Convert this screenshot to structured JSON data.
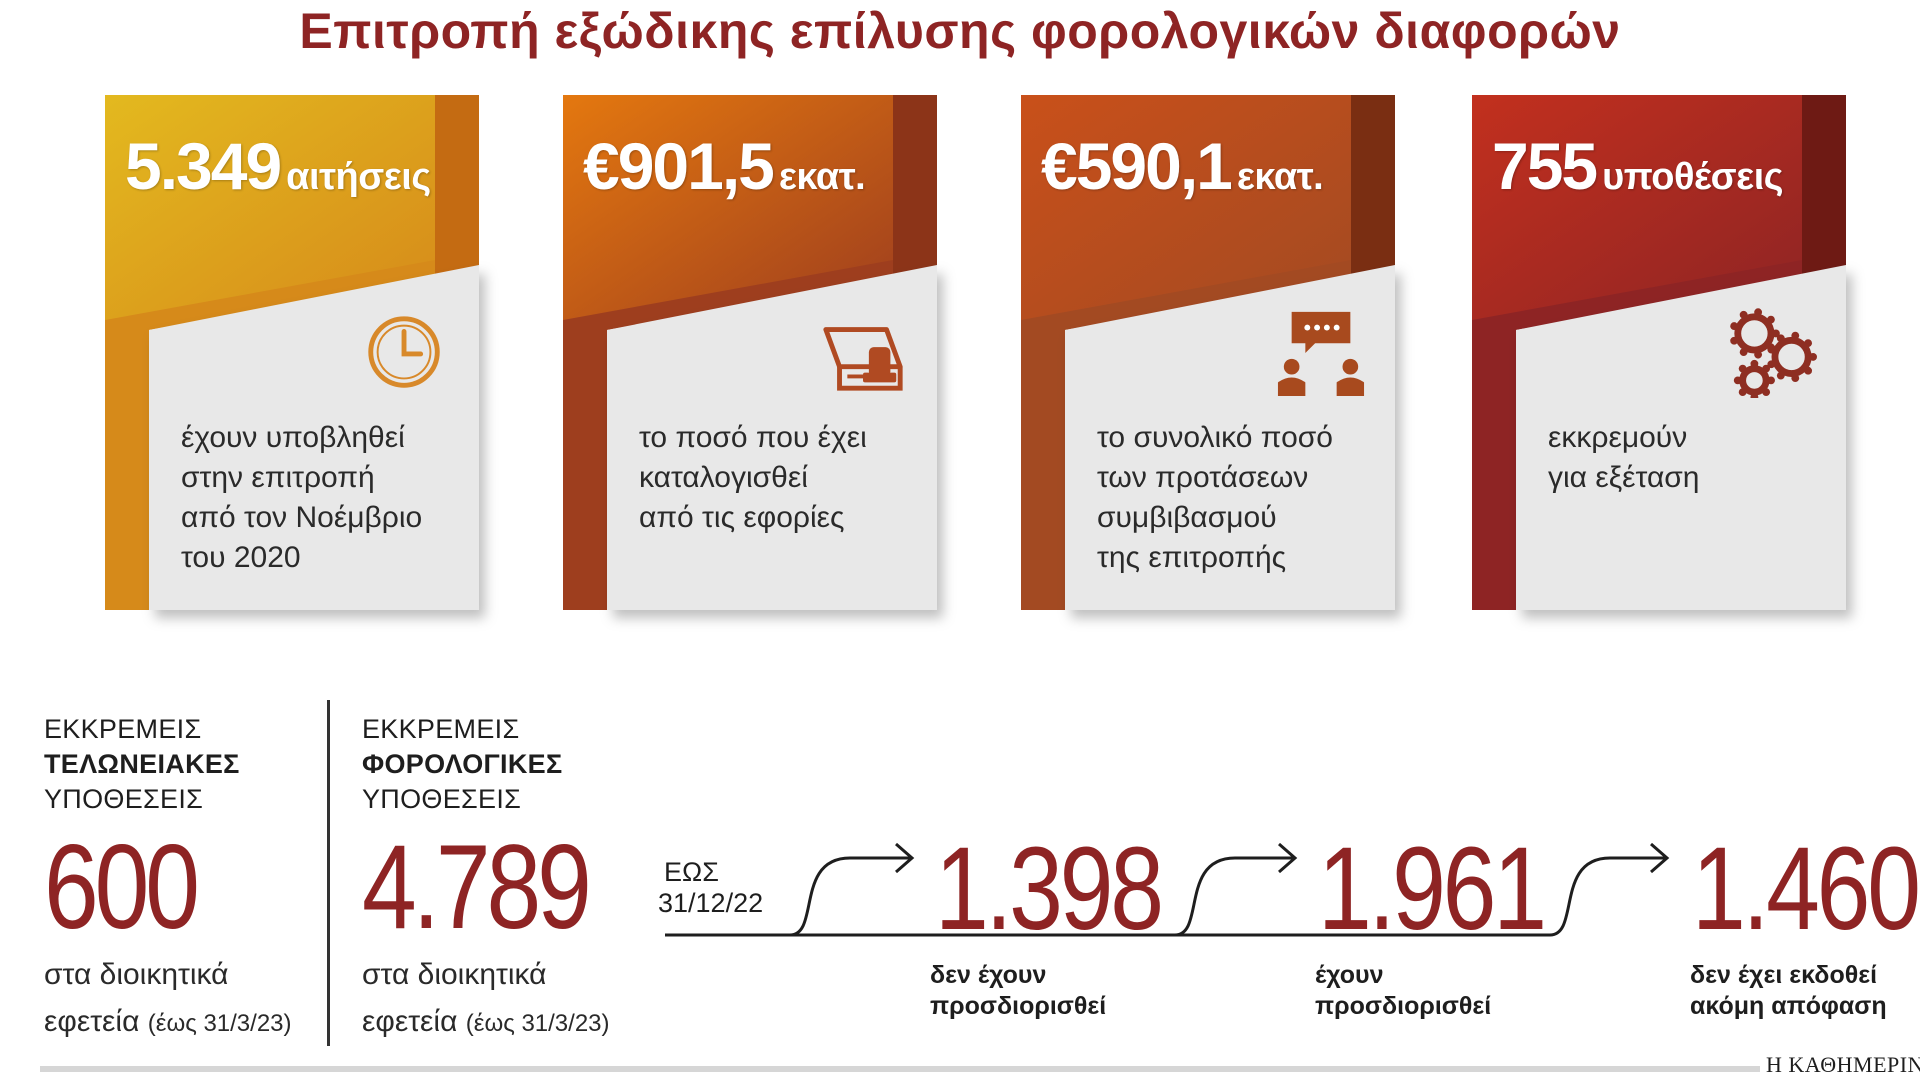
{
  "title": "Επιτροπή εξώδικης επίλυσης φορολογικών διαφορών",
  "cards": [
    {
      "value": "5.349",
      "unit": "αιτήσεις",
      "lines": [
        "έχουν υποβληθεί",
        "στην επιτροπή",
        "από τον Νοέμβριο",
        "του 2020"
      ],
      "icon": "clock-icon",
      "color_top": "#e3b91f",
      "color_side": "#d68a1a",
      "color_dark": "#c46b12",
      "icon_color": "#d8892a"
    },
    {
      "value": "€901,5",
      "unit": "εκατ.",
      "lines": [
        "το ποσό που έχει",
        "καταλογισθεί",
        "από τις εφορίες"
      ],
      "icon": "stamp-document-icon",
      "color_top": "#e4780f",
      "color_side": "#9e3e1e",
      "color_dark": "#8c3418",
      "icon_color": "#b04a22"
    },
    {
      "value": "€590,1",
      "unit": "εκατ.",
      "lines": [
        "το συνολικό ποσό",
        "των προτάσεων",
        "συμβιβασμού",
        "της επιτροπής"
      ],
      "icon": "conversation-icon",
      "color_top": "#c9501a",
      "color_side": "#a34a22",
      "color_dark": "#7a2e12",
      "icon_color": "#a84a1e"
    },
    {
      "value": "755",
      "unit": "υποθέσεις",
      "lines": [
        "εκκρεμούν",
        "για εξέταση"
      ],
      "icon": "gears-icon",
      "color_top": "#c2301e",
      "color_side": "#8e2424",
      "color_dark": "#6e1a14",
      "icon_color": "#8e2e22"
    }
  ],
  "customs": {
    "line1": "ΕΚΚΡΕΜΕΙΣ",
    "line2": "ΤΕΛΩΝΕΙΑΚΕΣ",
    "line3": "ΥΠΟΘΕΣΕΙΣ",
    "value": "600",
    "sub1": "στα διοικητικά",
    "sub2": "εφετεία",
    "note": "(έως 31/3/23)"
  },
  "tax": {
    "line1": "ΕΚΚΡΕΜΕΙΣ",
    "line2": "ΦΟΡΟΛΟΓΙΚΕΣ",
    "line3": "ΥΠΟΘΕΣΕΙΣ",
    "value": "4.789",
    "sub1": "στα διοικητικά",
    "sub2": "εφετεία",
    "note": "(έως 31/3/23)"
  },
  "flow": {
    "start_line1": "ΕΩΣ",
    "start_line2": "31/12/22",
    "items": [
      {
        "value": "1.398",
        "label1": "δεν έχουν",
        "label2": "προσδιορισθεί"
      },
      {
        "value": "1.961",
        "label1": "έχουν",
        "label2": "προσδιορισθεί"
      },
      {
        "value": "1.460",
        "label1": "δεν έχει εκδοθεί",
        "label2": "ακόμη απόφαση"
      }
    ]
  },
  "source": "Η ΚΑΘΗΜΕΡΙΝΗ",
  "chart_data": {
    "type": "table",
    "title": "Επιτροπή εξώδικης επίλυσης φορολογικών διαφορών",
    "stats": [
      {
        "value": 5349,
        "unit": "αιτήσεις"
      },
      {
        "value": 901.5,
        "unit": "€ εκατ."
      },
      {
        "value": 590.1,
        "unit": "€ εκατ."
      },
      {
        "value": 755,
        "unit": "υποθέσεις"
      }
    ],
    "pending_customs_cases": 600,
    "pending_tax_cases": 4789,
    "tax_cases_breakdown": [
      {
        "label": "δεν έχουν προσδιορισθεί",
        "value": 1398
      },
      {
        "label": "έχουν προσδιορισθεί",
        "value": 1961
      },
      {
        "label": "δεν έχει εκδοθεί ακόμη απόφαση",
        "value": 1460
      }
    ]
  }
}
